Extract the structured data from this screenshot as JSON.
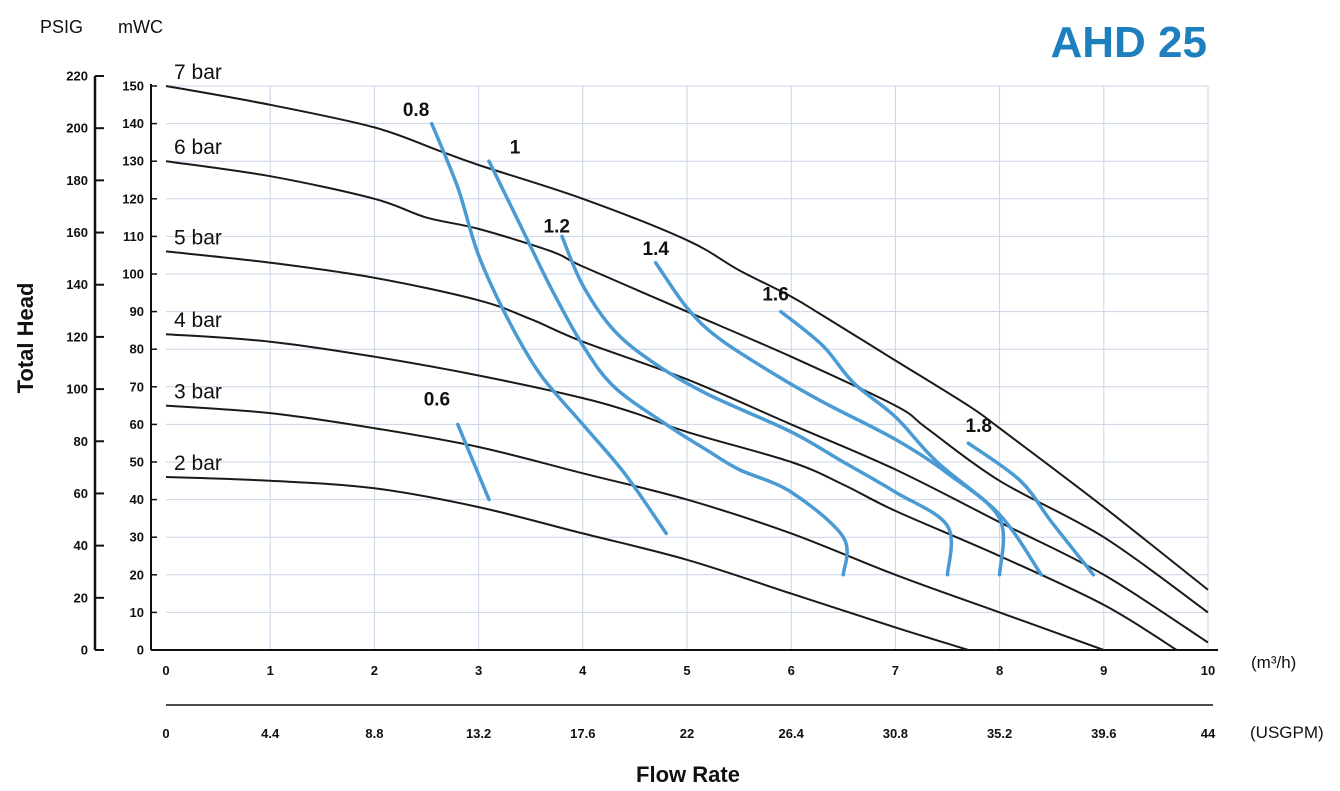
{
  "chart_data": {
    "type": "line",
    "title": "AHD 25",
    "xlabel": "Flow Rate",
    "ylabel": "Total Head",
    "x_unit_primary": "(m³/h)",
    "x_unit_secondary": "(USGPM)",
    "y_unit_left": "PSIG",
    "y_unit_right": "mWC",
    "xlim": [
      0,
      10
    ],
    "ylim_mwc": [
      0,
      150
    ],
    "ylim_psig": [
      0,
      220
    ],
    "grid": true,
    "x_ticks_m3h": [
      "0",
      "1",
      "2",
      "3",
      "4",
      "5",
      "6",
      "7",
      "8",
      "9",
      "10"
    ],
    "x_ticks_usgpm": [
      "0",
      "4.4",
      "8.8",
      "13.2",
      "17.6",
      "22",
      "26.4",
      "30.8",
      "35.2",
      "39.6",
      "44"
    ],
    "y_ticks_mwc": [
      "0",
      "10",
      "20",
      "30",
      "40",
      "50",
      "60",
      "70",
      "80",
      "90",
      "100",
      "110",
      "120",
      "130",
      "140",
      "150"
    ],
    "y_ticks_psig": [
      "0",
      "20",
      "40",
      "60",
      "80",
      "100",
      "120",
      "140",
      "160",
      "180",
      "200",
      "220"
    ],
    "series": [
      {
        "name": "7 bar",
        "color": "#1a1a1a",
        "points": [
          [
            0,
            150
          ],
          [
            1,
            145
          ],
          [
            2,
            139
          ],
          [
            2.6,
            133
          ],
          [
            3,
            129
          ],
          [
            4,
            120
          ],
          [
            5,
            109
          ],
          [
            5.5,
            101
          ],
          [
            6,
            94
          ],
          [
            6.3,
            89
          ],
          [
            7,
            77
          ],
          [
            7.7,
            65
          ],
          [
            8,
            59
          ],
          [
            9,
            38
          ],
          [
            10,
            16
          ]
        ]
      },
      {
        "name": "6 bar",
        "color": "#1a1a1a",
        "points": [
          [
            0,
            130
          ],
          [
            1,
            126
          ],
          [
            2,
            120
          ],
          [
            2.5,
            115
          ],
          [
            3,
            112
          ],
          [
            3.7,
            106
          ],
          [
            4,
            102
          ],
          [
            5,
            90
          ],
          [
            6,
            78
          ],
          [
            7,
            65
          ],
          [
            7.3,
            59
          ],
          [
            8,
            45
          ],
          [
            9,
            30
          ],
          [
            10,
            10
          ]
        ]
      },
      {
        "name": "5 bar",
        "color": "#1a1a1a",
        "points": [
          [
            0,
            106
          ],
          [
            1,
            103
          ],
          [
            2,
            99
          ],
          [
            3,
            93
          ],
          [
            3.5,
            88
          ],
          [
            4,
            82
          ],
          [
            5,
            72
          ],
          [
            6,
            60
          ],
          [
            7,
            48
          ],
          [
            8,
            34
          ],
          [
            9,
            20
          ],
          [
            10,
            2
          ]
        ]
      },
      {
        "name": "4 bar",
        "color": "#1a1a1a",
        "points": [
          [
            0,
            84
          ],
          [
            1,
            82
          ],
          [
            2,
            78
          ],
          [
            3,
            73
          ],
          [
            4,
            67
          ],
          [
            4.5,
            63
          ],
          [
            5,
            58
          ],
          [
            6,
            50
          ],
          [
            6.5,
            44
          ],
          [
            7,
            37
          ],
          [
            8,
            25
          ],
          [
            9,
            12
          ],
          [
            9.7,
            0
          ]
        ]
      },
      {
        "name": "3 bar",
        "color": "#1a1a1a",
        "points": [
          [
            0,
            65
          ],
          [
            1,
            63
          ],
          [
            2,
            59
          ],
          [
            3,
            54
          ],
          [
            4,
            47
          ],
          [
            5,
            40
          ],
          [
            6,
            31
          ],
          [
            7,
            20
          ],
          [
            8,
            10
          ],
          [
            9,
            0
          ]
        ]
      },
      {
        "name": "2 bar",
        "color": "#1a1a1a",
        "points": [
          [
            0,
            46
          ],
          [
            1,
            45
          ],
          [
            2,
            43
          ],
          [
            3,
            38
          ],
          [
            4,
            31
          ],
          [
            5,
            24
          ],
          [
            6,
            15
          ],
          [
            7,
            6
          ],
          [
            7.7,
            0
          ]
        ]
      }
    ],
    "air_consumption_lines": [
      {
        "name": "0.6",
        "color": "#4a9ad4",
        "label_at": [
          2.6,
          65
        ],
        "points": [
          [
            2.8,
            60
          ],
          [
            3.1,
            40
          ]
        ]
      },
      {
        "name": "0.8",
        "color": "#4a9ad4",
        "label_at": [
          2.4,
          142
        ],
        "points": [
          [
            2.55,
            140
          ],
          [
            2.8,
            123
          ],
          [
            3,
            105
          ],
          [
            3.3,
            87
          ],
          [
            3.6,
            73
          ],
          [
            4,
            60
          ],
          [
            4.4,
            47
          ],
          [
            4.8,
            31
          ]
        ]
      },
      {
        "name": "1",
        "color": "#4a9ad4",
        "label_at": [
          3.35,
          132
        ],
        "points": [
          [
            3.1,
            130
          ],
          [
            3.4,
            113
          ],
          [
            3.7,
            96
          ],
          [
            4.0,
            81
          ],
          [
            4.3,
            70
          ],
          [
            4.8,
            60
          ],
          [
            5.2,
            53
          ],
          [
            5.5,
            48
          ],
          [
            6,
            42
          ],
          [
            6.5,
            30
          ],
          [
            6.5,
            20
          ]
        ]
      },
      {
        "name": "1.2",
        "color": "#4a9ad4",
        "label_at": [
          3.75,
          111
        ],
        "points": [
          [
            3.8,
            110
          ],
          [
            4.0,
            97
          ],
          [
            4.3,
            85
          ],
          [
            4.7,
            76
          ],
          [
            5.2,
            68
          ],
          [
            6,
            58
          ],
          [
            6.5,
            50
          ],
          [
            7,
            42
          ],
          [
            7.5,
            33
          ],
          [
            7.5,
            20
          ]
        ]
      },
      {
        "name": "1.4",
        "color": "#4a9ad4",
        "label_at": [
          4.7,
          105
        ],
        "points": [
          [
            4.7,
            103
          ],
          [
            5.0,
            91
          ],
          [
            5.3,
            83
          ],
          [
            5.8,
            74
          ],
          [
            6.3,
            66
          ],
          [
            7,
            56
          ],
          [
            7.5,
            47
          ],
          [
            8,
            35
          ],
          [
            8,
            20
          ]
        ]
      },
      {
        "name": "1.6",
        "color": "#4a9ad4",
        "label_at": [
          5.85,
          93
        ],
        "points": [
          [
            5.9,
            90
          ],
          [
            6.3,
            81
          ],
          [
            6.6,
            71
          ],
          [
            7,
            62
          ],
          [
            7.4,
            50
          ],
          [
            8,
            36
          ],
          [
            8.4,
            20
          ]
        ]
      },
      {
        "name": "1.8",
        "color": "#4a9ad4",
        "label_at": [
          7.8,
          58
        ],
        "points": [
          [
            7.7,
            55
          ],
          [
            8.2,
            45
          ],
          [
            8.5,
            34
          ],
          [
            8.9,
            20
          ]
        ]
      }
    ]
  }
}
